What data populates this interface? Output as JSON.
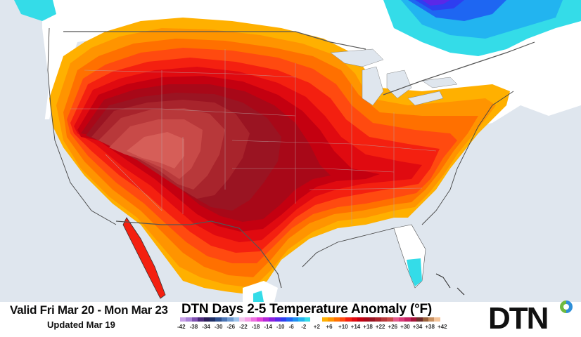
{
  "map": {
    "title": "DTN Days 2-5 Temperature Anomaly (°F)",
    "valid_range": "Valid Fri Mar 20 - Mon Mar 23",
    "updated": "Updated Mar 19",
    "units": "°F",
    "region": "Contiguous United States, southern Canada, northern Mexico",
    "highlights": [
      {
        "area": "Southwest / Great Basin / Four Corners",
        "anomaly": "+30 to +38"
      },
      {
        "area": "Central & Southern Plains",
        "anomaly": "+18 to +26"
      },
      {
        "area": "Midwest / Ohio Valley / Southeast",
        "anomaly": "+10 to +18"
      },
      {
        "area": "Great Lakes / Northeast coast",
        "anomaly": "+2 to +10"
      },
      {
        "area": "Southern Florida",
        "anomaly": "-2 to -6"
      },
      {
        "area": "Quebec / Northern Ontario",
        "anomaly": "-6 to -18"
      }
    ]
  },
  "legend": {
    "labels": [
      "-42",
      "-38",
      "-34",
      "-30",
      "-26",
      "-22",
      "-18",
      "-14",
      "-10",
      "-6",
      "-2",
      "+2",
      "+6",
      "+10",
      "+14",
      "+18",
      "+22",
      "+26",
      "+30",
      "+34",
      "+38",
      "+42"
    ],
    "colors": [
      "#c8a0e8",
      "#a882d6",
      "#7d4fb0",
      "#4a2a7a",
      "#2a1c58",
      "#1e2f66",
      "#2e4f8e",
      "#4a74b4",
      "#6f9ad0",
      "#9cc4ec",
      "#f2c6ec",
      "#f59ee6",
      "#ee6ee0",
      "#e040d8",
      "#b428d8",
      "#8a20e0",
      "#5a28e8",
      "#2e3ef0",
      "#1e66f2",
      "#1e8ef2",
      "#22b4f0",
      "#34dce8",
      "#ffffff",
      "#ffffff",
      "#ffb000",
      "#ff9400",
      "#ff7000",
      "#ff4a10",
      "#f42010",
      "#e00a10",
      "#c40010",
      "#a80818",
      "#9a1422",
      "#a8242c",
      "#b8383a",
      "#c84a48",
      "#e25a8a",
      "#d83a78",
      "#c22260",
      "#a41438",
      "#6e2a28",
      "#98603a",
      "#c89060",
      "#f4c49a"
    ]
  },
  "brand": {
    "logo_text": "DTN",
    "accent_blue": "#2e8fd8",
    "accent_green": "#6fba3f"
  }
}
